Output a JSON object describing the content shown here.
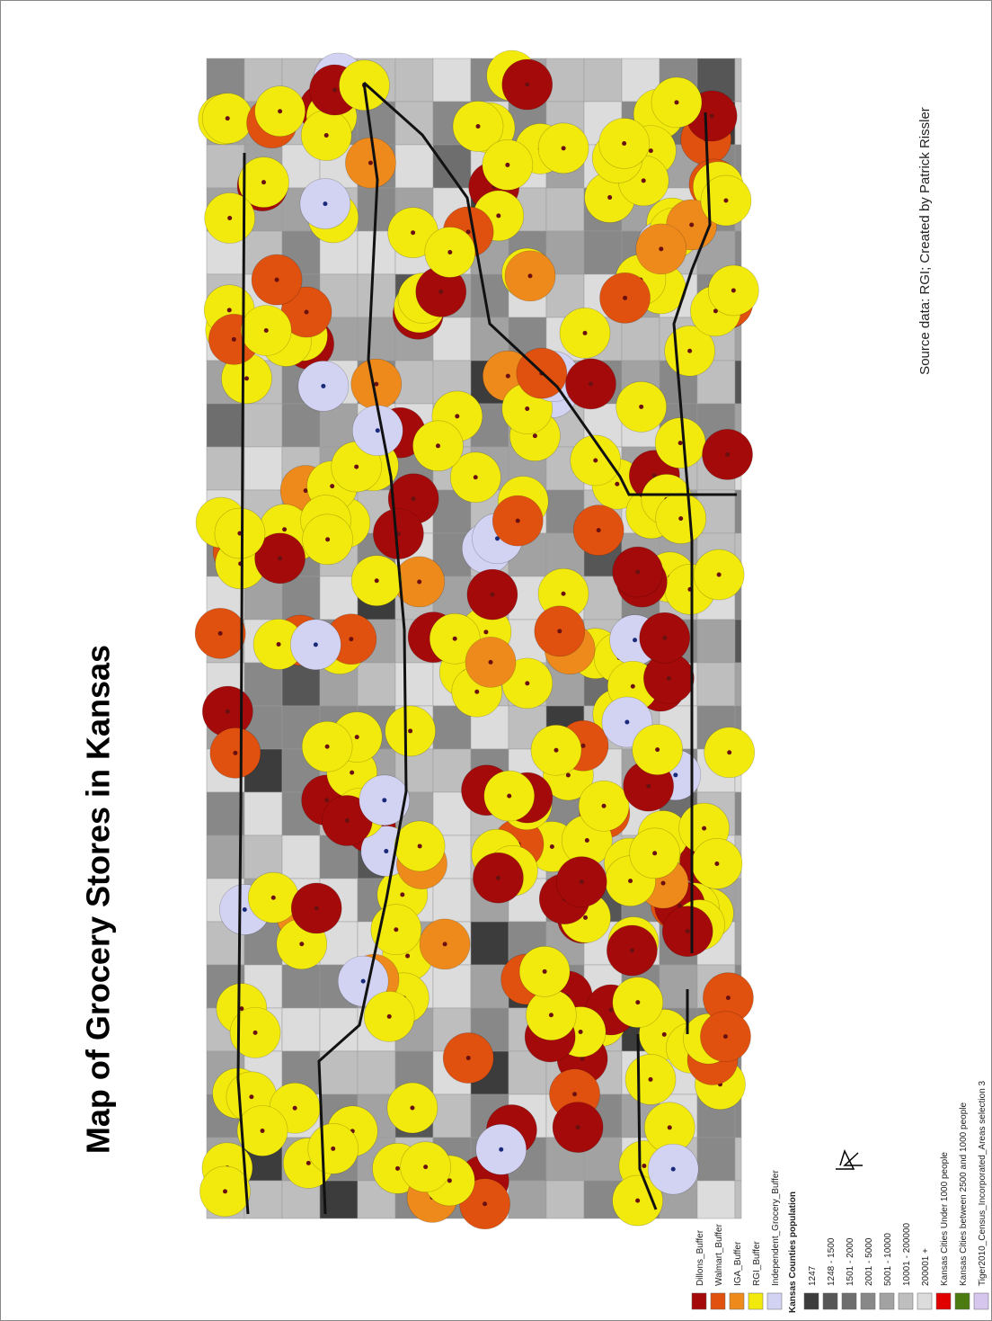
{
  "title": "Map of Grocery Stores in Kansas",
  "source": "Source data: RGI; Created by Patrick Rissler",
  "legend": {
    "buffers": [
      {
        "label": "Dillons_Buffer",
        "color": "#a50a0a"
      },
      {
        "label": "Walmart_Buffer",
        "color": "#e0500f"
      },
      {
        "label": "IGA_Buffer",
        "color": "#ee8a1c"
      },
      {
        "label": "RGI_Buffer",
        "color": "#f2ea0c"
      },
      {
        "label": "Independent_Grocery_Buffer",
        "color": "#d2d2f2"
      }
    ],
    "population_title": "Kansas Counties population",
    "population": [
      {
        "label": "1247",
        "color": "#3c3c3c"
      },
      {
        "label": "1248 - 1500",
        "color": "#565656"
      },
      {
        "label": "1501 - 2000",
        "color": "#6e6e6e"
      },
      {
        "label": "2001 - 5000",
        "color": "#888888"
      },
      {
        "label": "5001 - 10000",
        "color": "#a2a2a2"
      },
      {
        "label": "10001 - 200000",
        "color": "#bebebe"
      },
      {
        "label": "200001 +",
        "color": "#dcdcdc"
      }
    ],
    "cities": [
      {
        "label": "Kansas Cities Under 1000 people",
        "color": "#e00000"
      },
      {
        "label": "Kansas Cities between 2500 and 1000 people",
        "color": "#4a7a10"
      },
      {
        "label": "Tiger2010_Census_Incorporated_Areas selection 3",
        "color": "#d6c6ee"
      }
    ]
  }
}
